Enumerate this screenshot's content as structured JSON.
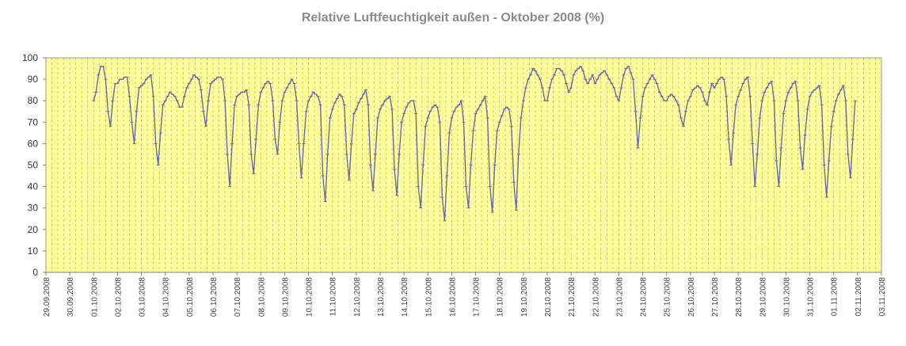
{
  "chart_data": {
    "type": "line",
    "title": "Relative Luftfeuchtigkeit außen - Oktober 2008 (%)",
    "xlabel": "",
    "ylabel": "",
    "ylim": [
      0,
      100
    ],
    "yticks": [
      "0",
      "10",
      "20",
      "30",
      "40",
      "50",
      "60",
      "70",
      "80",
      "90",
      "100"
    ],
    "x_ticks": [
      "29.09.2008",
      "30.09.2008",
      "01.10.2008",
      "02.10.2008",
      "03.10.2008",
      "04.10.2008",
      "05.10.2008",
      "06.10.2008",
      "07.10.2008",
      "08.10.2008",
      "09.10.2008",
      "10.10.2008",
      "11.10.2008",
      "12.10.2008",
      "13.10.2008",
      "14.10.2008",
      "15.10.2008",
      "16.10.2008",
      "17.10.2008",
      "18.10.2008",
      "19.10.2008",
      "20.10.2008",
      "21.10.2008",
      "22.10.2008",
      "23.10.2008",
      "24.10.2008",
      "25.10.2008",
      "26.10.2008",
      "27.10.2008",
      "28.10.2008",
      "29.10.2008",
      "30.10.2008",
      "31.10.2008",
      "01.11.2008",
      "02.11.2008",
      "03.11.2008"
    ],
    "grid": "vertical dashed every 6 hours",
    "plot_background": "#ffff99",
    "line_color": "#6a6aa8",
    "daily_samples": [
      {
        "day": "01.10.2008",
        "values": [
          80,
          84,
          92,
          96,
          96,
          90,
          75,
          68,
          80,
          88
        ]
      },
      {
        "day": "02.10.2008",
        "values": [
          88,
          90,
          90,
          91,
          91,
          82,
          70,
          60,
          75,
          86
        ]
      },
      {
        "day": "03.10.2008",
        "values": [
          87,
          88,
          90,
          91,
          92,
          82,
          60,
          50,
          65,
          78
        ]
      },
      {
        "day": "04.10.2008",
        "values": [
          80,
          82,
          84,
          83,
          82,
          80,
          77,
          77,
          82,
          86
        ]
      },
      {
        "day": "05.10.2008",
        "values": [
          88,
          90,
          92,
          91,
          90,
          85,
          75,
          68,
          80,
          88
        ]
      },
      {
        "day": "06.10.2008",
        "values": [
          89,
          90,
          91,
          91,
          90,
          80,
          55,
          40,
          60,
          78
        ]
      },
      {
        "day": "07.10.2008",
        "values": [
          82,
          83,
          84,
          84,
          85,
          78,
          55,
          46,
          62,
          78
        ]
      },
      {
        "day": "08.10.2008",
        "values": [
          84,
          86,
          88,
          89,
          88,
          80,
          62,
          55,
          70,
          80
        ]
      },
      {
        "day": "09.10.2008",
        "values": [
          84,
          86,
          88,
          90,
          88,
          80,
          60,
          44,
          60,
          75
        ]
      },
      {
        "day": "10.10.2008",
        "values": [
          80,
          82,
          84,
          83,
          82,
          78,
          45,
          33,
          55,
          72
        ]
      },
      {
        "day": "11.10.2008",
        "values": [
          76,
          79,
          81,
          83,
          82,
          78,
          55,
          43,
          60,
          74
        ]
      },
      {
        "day": "12.10.2008",
        "values": [
          76,
          79,
          81,
          83,
          85,
          78,
          50,
          38,
          55,
          72
        ]
      },
      {
        "day": "13.10.2008",
        "values": [
          76,
          78,
          80,
          81,
          82,
          76,
          48,
          36,
          55,
          70
        ]
      },
      {
        "day": "14.10.2008",
        "values": [
          74,
          77,
          79,
          80,
          80,
          74,
          40,
          30,
          50,
          68
        ]
      },
      {
        "day": "15.10.2008",
        "values": [
          72,
          75,
          77,
          78,
          77,
          70,
          35,
          24,
          45,
          65
        ]
      },
      {
        "day": "16.10.2008",
        "values": [
          72,
          75,
          77,
          78,
          80,
          70,
          40,
          30,
          50,
          66
        ]
      },
      {
        "day": "17.10.2008",
        "values": [
          74,
          76,
          78,
          80,
          82,
          72,
          40,
          28,
          50,
          66
        ]
      },
      {
        "day": "18.10.2008",
        "values": [
          70,
          73,
          76,
          77,
          76,
          68,
          42,
          29,
          55,
          72
        ]
      },
      {
        "day": "19.10.2008",
        "values": [
          80,
          86,
          90,
          92,
          95,
          94,
          92,
          90,
          86,
          80
        ]
      },
      {
        "day": "20.10.2008",
        "values": [
          80,
          86,
          90,
          92,
          95,
          95,
          94,
          92,
          88,
          84
        ]
      },
      {
        "day": "21.10.2008",
        "values": [
          86,
          92,
          94,
          95,
          96,
          94,
          90,
          88,
          90,
          92
        ]
      },
      {
        "day": "22.10.2008",
        "values": [
          88,
          90,
          92,
          93,
          94,
          92,
          90,
          88,
          86,
          82
        ]
      },
      {
        "day": "23.10.2008",
        "values": [
          80,
          86,
          92,
          95,
          96,
          93,
          90,
          75,
          58,
          72
        ]
      },
      {
        "day": "24.10.2008",
        "values": [
          82,
          86,
          88,
          90,
          92,
          90,
          88,
          84,
          82,
          80
        ]
      },
      {
        "day": "25.10.2008",
        "values": [
          80,
          82,
          83,
          82,
          80,
          78,
          72,
          68,
          75,
          80
        ]
      },
      {
        "day": "26.10.2008",
        "values": [
          82,
          85,
          86,
          87,
          86,
          84,
          80,
          78,
          84,
          88
        ]
      },
      {
        "day": "27.10.2008",
        "values": [
          86,
          88,
          90,
          91,
          90,
          82,
          62,
          50,
          65,
          78
        ]
      },
      {
        "day": "28.10.2008",
        "values": [
          82,
          85,
          88,
          90,
          91,
          82,
          60,
          40,
          55,
          72
        ]
      },
      {
        "day": "29.10.2008",
        "values": [
          80,
          84,
          86,
          88,
          89,
          80,
          52,
          40,
          58,
          74
        ]
      },
      {
        "day": "30.10.2008",
        "values": [
          80,
          84,
          86,
          88,
          89,
          80,
          58,
          48,
          64,
          76
        ]
      },
      {
        "day": "31.10.2008",
        "values": [
          82,
          84,
          85,
          86,
          87,
          78,
          50,
          35,
          52,
          68
        ]
      },
      {
        "day": "01.11.2008",
        "values": [
          75,
          80,
          83,
          85,
          87,
          80,
          55,
          44,
          62,
          80
        ]
      }
    ]
  }
}
